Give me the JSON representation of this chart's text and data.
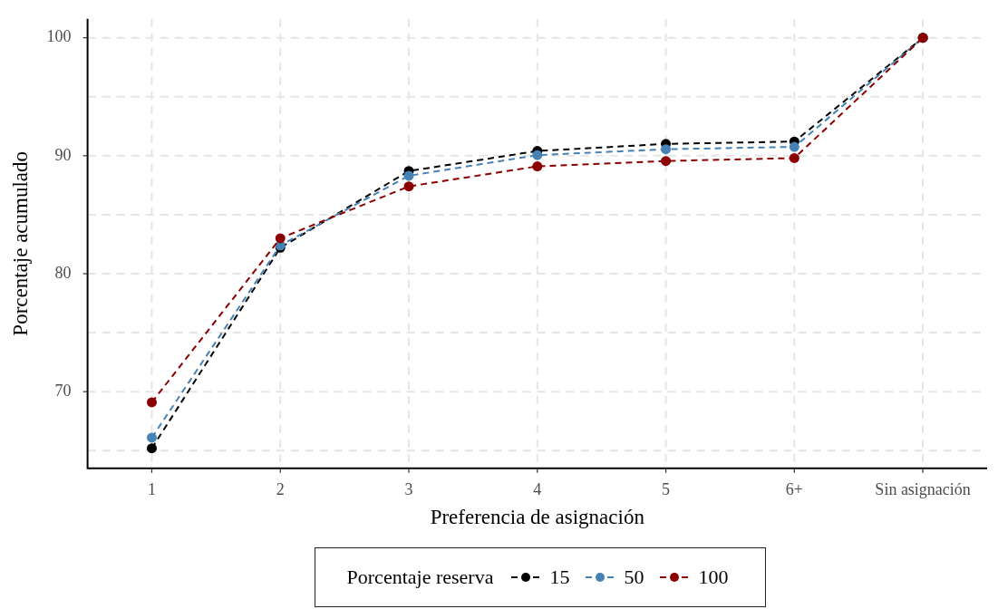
{
  "chart_data": {
    "type": "line",
    "xlabel": "Preferencia de asignación",
    "ylabel": "Porcentaje acumulado",
    "legend_title": "Porcentaje reserva",
    "legend": "bottom",
    "grid": true,
    "marker": "circle",
    "line_style": "dashed",
    "categories": [
      "1",
      "2",
      "3",
      "4",
      "5",
      "6+",
      "Sin asignación"
    ],
    "ylim": [
      63.5,
      101.6
    ],
    "yticks": [
      {
        "value": 65,
        "label": null
      },
      70,
      {
        "value": 75,
        "label": null
      },
      80,
      {
        "value": 85,
        "label": null
      },
      90,
      {
        "value": 95,
        "label": null
      },
      100
    ],
    "series": [
      {
        "name": "15",
        "color": "#000000",
        "values": [
          65.2,
          82.2,
          88.7,
          90.4,
          91.0,
          91.2,
          100
        ]
      },
      {
        "name": "50",
        "color": "#4682b4",
        "values": [
          66.1,
          82.4,
          88.3,
          90.05,
          90.55,
          90.75,
          100
        ]
      },
      {
        "name": "100",
        "color": "#8b0000",
        "values": [
          69.1,
          83.0,
          87.4,
          89.1,
          89.55,
          89.8,
          100
        ]
      }
    ]
  }
}
